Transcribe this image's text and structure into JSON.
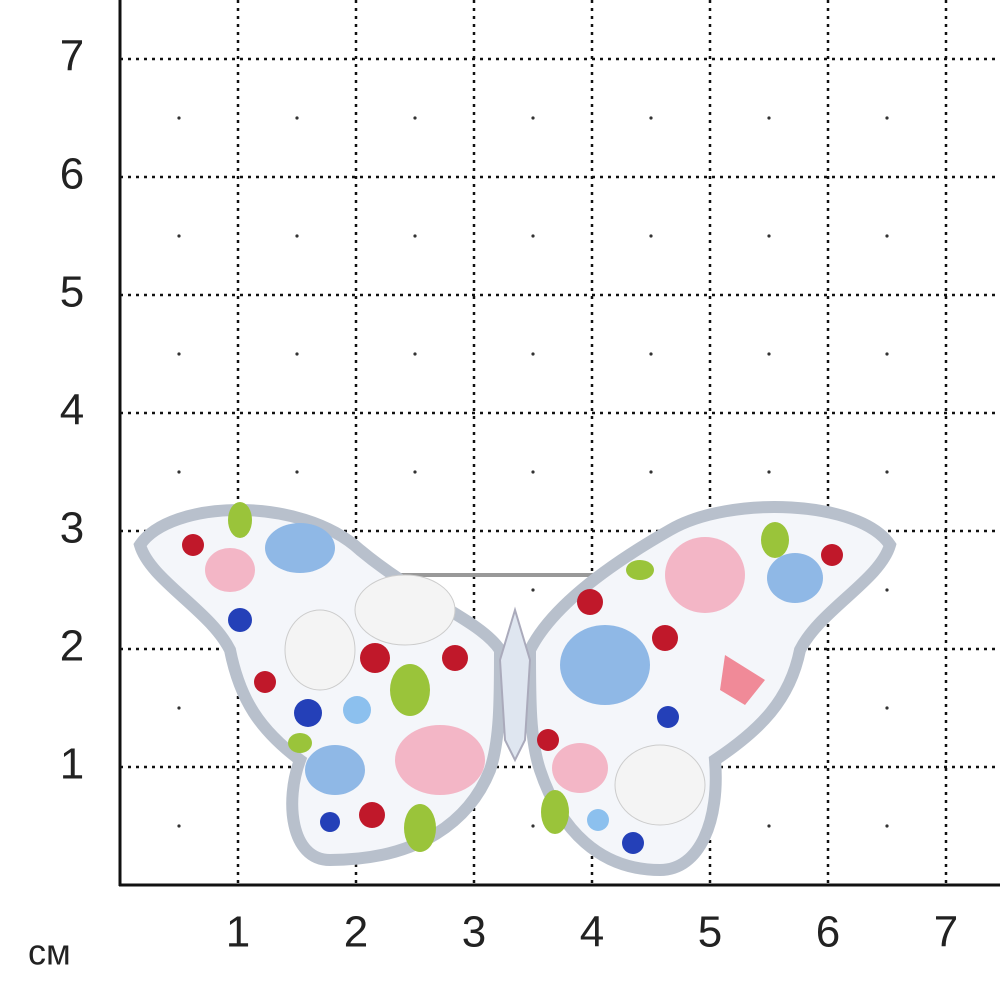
{
  "grid": {
    "xticks": [
      1,
      2,
      3,
      4,
      5,
      6,
      7
    ],
    "yticks": [
      1,
      2,
      3,
      4,
      5,
      6,
      7
    ],
    "unit": "см"
  }
}
